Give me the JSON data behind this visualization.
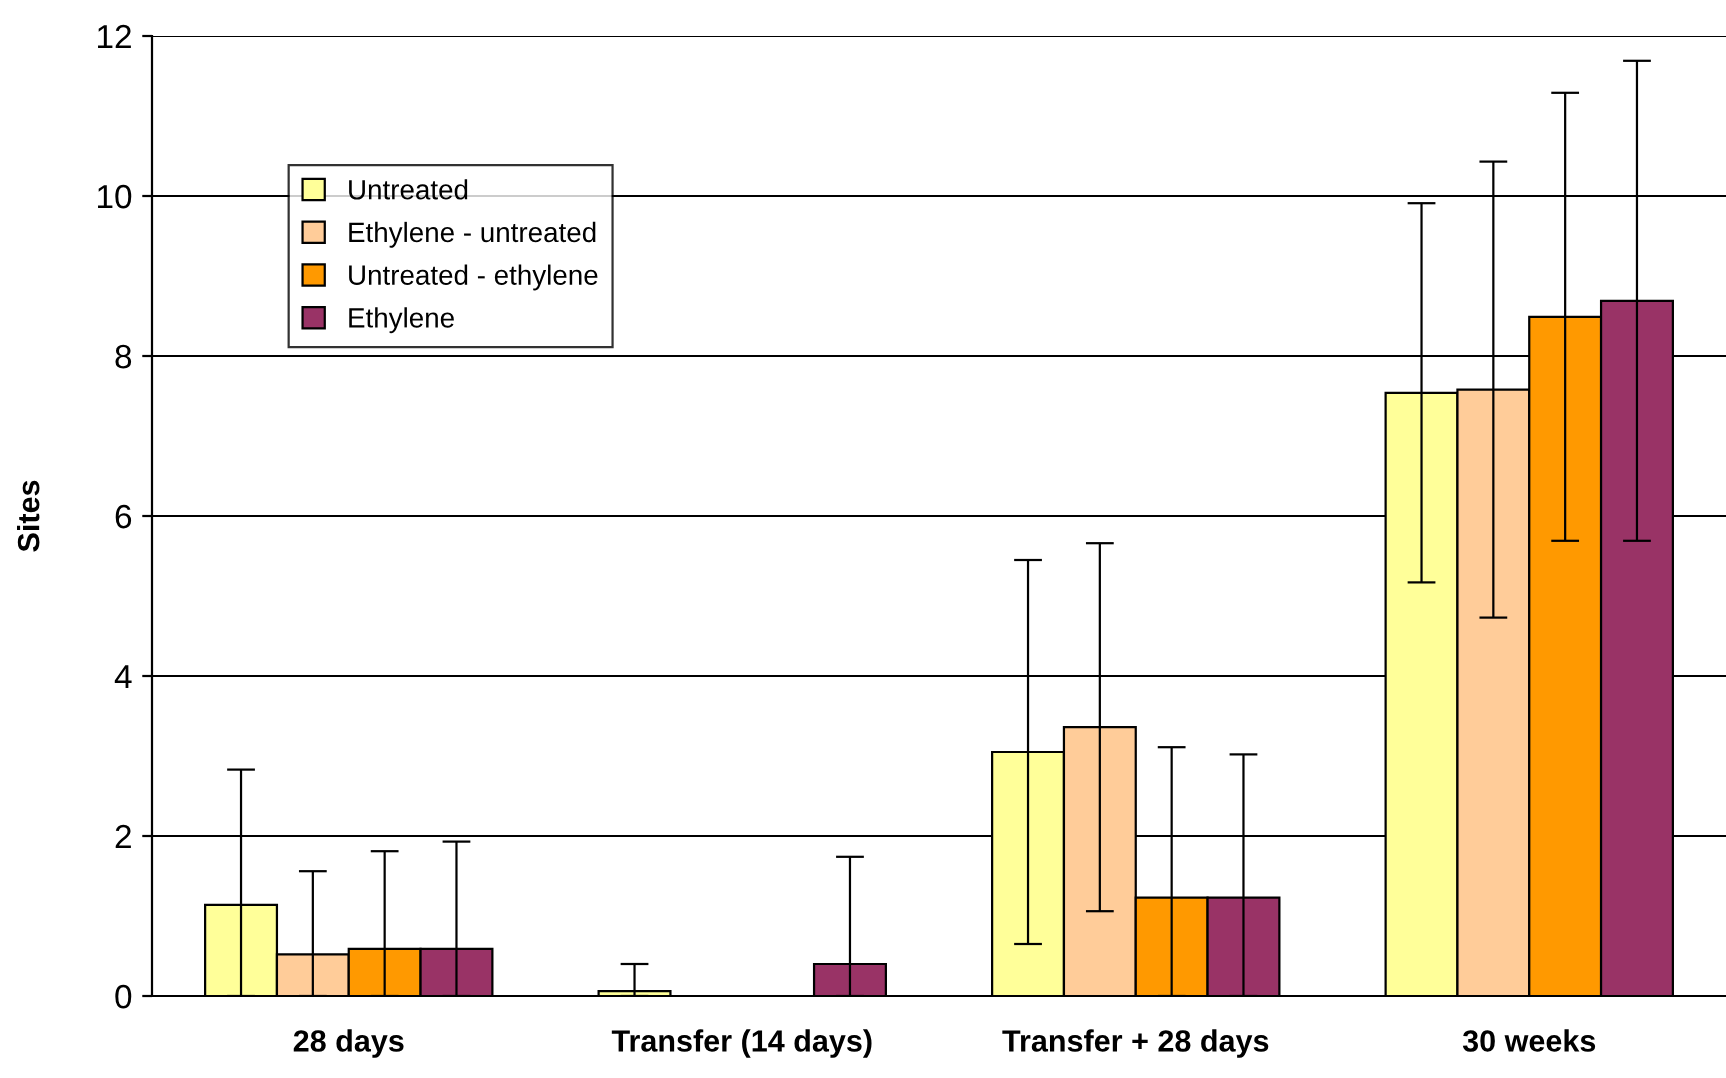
{
  "chart_data": {
    "type": "bar",
    "ylabel": "Sites",
    "categories": [
      "28 days",
      "Transfer (14 days)",
      "Transfer + 28 days",
      "30 weeks"
    ],
    "series": [
      {
        "name": "Untreated",
        "color": "#ffff99",
        "values": [
          1.14,
          0.06,
          3.05,
          7.54
        ],
        "errors": [
          [
            0,
            2.83
          ],
          [
            0,
            0.4
          ],
          2.4,
          2.37
        ]
      },
      {
        "name": "Ethylene - untreated",
        "color": "#ffcc99",
        "values": [
          0.52,
          0,
          3.36,
          7.58
        ],
        "errors": [
          [
            0,
            1.56
          ],
          null,
          2.3,
          2.85
        ]
      },
      {
        "name": "Untreated - ethylene",
        "color": "#ff9900",
        "values": [
          0.59,
          0,
          1.23,
          8.49
        ],
        "errors": [
          [
            0,
            1.81
          ],
          null,
          [
            0,
            3.11
          ],
          2.8
        ]
      },
      {
        "name": "Ethylene",
        "color": "#993366",
        "values": [
          0.59,
          0.4,
          1.23,
          8.69
        ],
        "errors": [
          [
            0,
            1.93
          ],
          [
            0,
            1.74
          ],
          [
            0,
            3.02
          ],
          3.0
        ]
      }
    ],
    "ylim": [
      0,
      12
    ],
    "yticks": [
      0,
      2,
      4,
      6,
      8,
      10,
      12
    ],
    "grid": "y",
    "legend": "top left"
  }
}
